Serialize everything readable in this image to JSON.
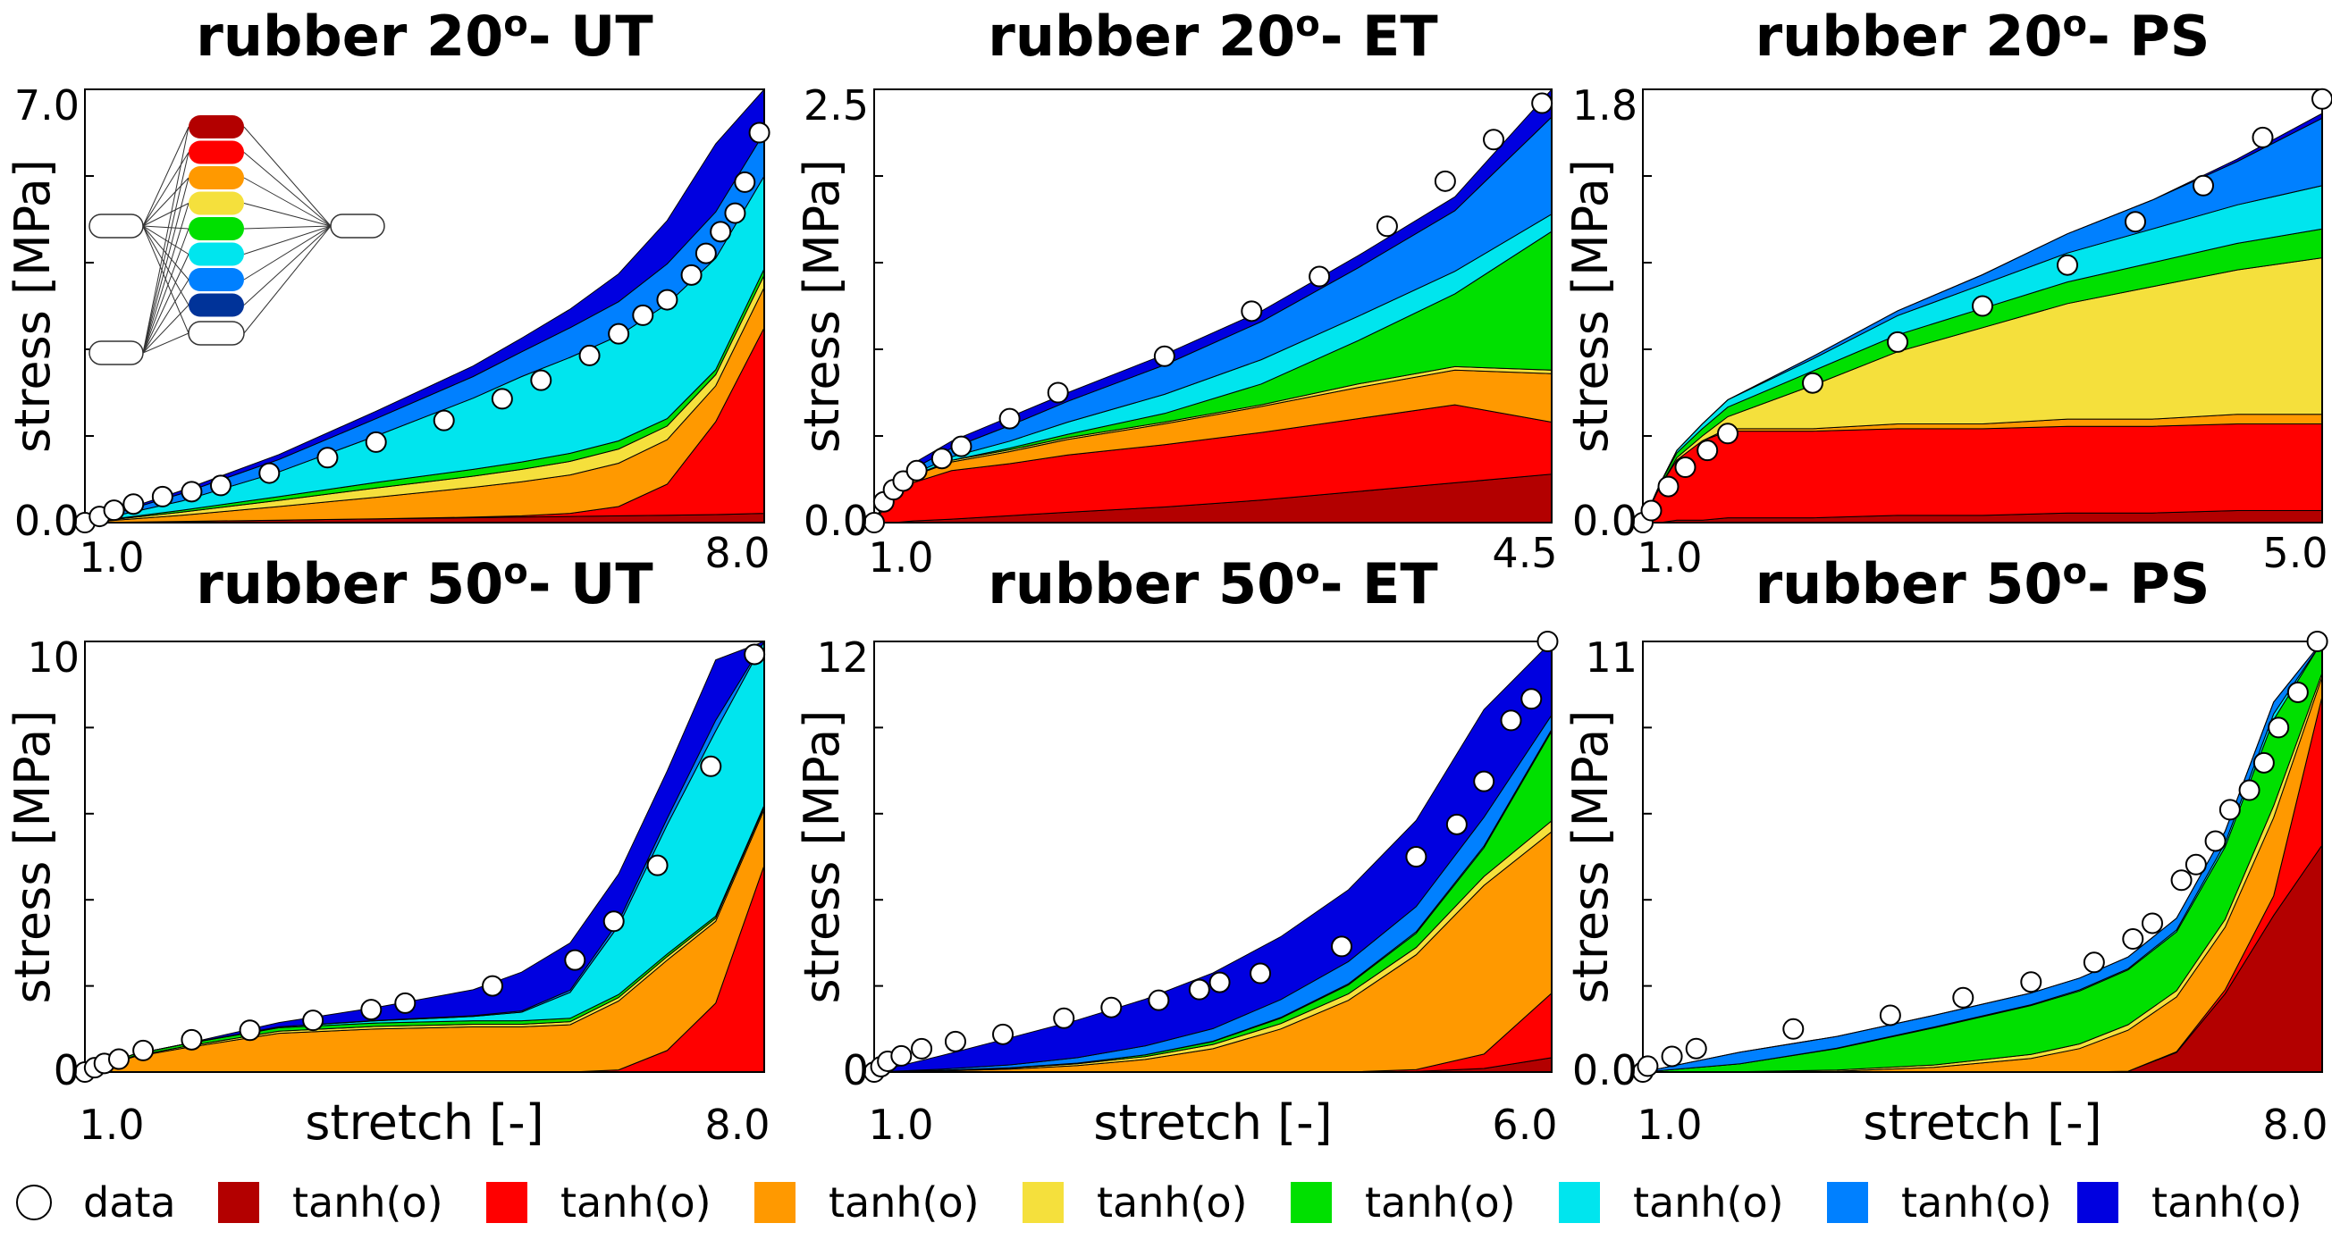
{
  "figure": {
    "legend": [
      {
        "label": "data",
        "kind": "circle"
      },
      {
        "label": "tanh(o)",
        "color": "#b30000"
      },
      {
        "label": "tanh(o)",
        "color": "#ff0000"
      },
      {
        "label": "tanh(o)",
        "color": "#ff9900"
      },
      {
        "label": "tanh(o)",
        "color": "#f5e03c"
      },
      {
        "label": "tanh(o)",
        "color": "#00e000"
      },
      {
        "label": "tanh(o)",
        "color": "#00e5ee"
      },
      {
        "label": "tanh(o)",
        "color": "#0080ff"
      },
      {
        "label": "tanh(o)",
        "color": "#0000e0"
      }
    ],
    "inset_network": {
      "node_colors": [
        "#b30000",
        "#ff0000",
        "#ff9900",
        "#f5e03c",
        "#00e000",
        "#00e5ee",
        "#0080ff",
        "#003399"
      ]
    }
  },
  "chart_data": [
    {
      "type": "area",
      "title_pre": "rubber 20",
      "title_sup": "o",
      "title_post": "- UT",
      "xlabel": "",
      "ylabel": "stress [MPa]",
      "xlim": [
        1.0,
        8.0
      ],
      "ylim": [
        0.0,
        7.0
      ],
      "xticks": [
        "1.0",
        "8.0"
      ],
      "yticks": [
        "0.0",
        "7.0"
      ],
      "series_names": [
        "tanh(o)",
        "tanh(o)",
        "tanh(o)",
        "tanh(o)",
        "tanh(o)",
        "tanh(o)",
        "tanh(o)",
        "tanh(o)"
      ],
      "x": [
        1.0,
        2.0,
        3.0,
        4.0,
        5.0,
        5.5,
        6.0,
        6.5,
        7.0,
        7.5,
        8.0
      ],
      "stacked": [
        [
          0.0,
          0.02,
          0.04,
          0.06,
          0.08,
          0.09,
          0.1,
          0.11,
          0.12,
          0.13,
          0.15
        ],
        [
          0.0,
          0.0,
          0.0,
          0.0,
          0.01,
          0.02,
          0.05,
          0.15,
          0.5,
          1.5,
          3.0
        ],
        [
          0.0,
          0.1,
          0.22,
          0.35,
          0.48,
          0.55,
          0.62,
          0.7,
          0.72,
          0.58,
          0.65
        ],
        [
          0.0,
          0.05,
          0.1,
          0.15,
          0.18,
          0.2,
          0.22,
          0.23,
          0.22,
          0.18,
          0.2
        ],
        [
          0.0,
          0.03,
          0.06,
          0.09,
          0.11,
          0.12,
          0.13,
          0.13,
          0.12,
          0.08,
          0.1
        ],
        [
          0.0,
          0.15,
          0.4,
          0.75,
          1.15,
          1.38,
          1.55,
          1.7,
          1.85,
          1.8,
          1.5
        ],
        [
          0.0,
          0.12,
          0.2,
          0.28,
          0.35,
          0.4,
          0.48,
          0.55,
          0.65,
          0.75,
          0.7
        ],
        [
          0.0,
          0.05,
          0.08,
          0.12,
          0.17,
          0.22,
          0.3,
          0.45,
          0.7,
          1.1,
          1.7
        ]
      ],
      "data_points": {
        "x": [
          1.0,
          1.15,
          1.3,
          1.5,
          1.8,
          2.1,
          2.4,
          2.9,
          3.5,
          4.0,
          4.7,
          5.3,
          5.7,
          6.2,
          6.5,
          6.75,
          7.0,
          7.25,
          7.4,
          7.55,
          7.7,
          7.8,
          7.95
        ],
        "y": [
          0.0,
          0.1,
          0.2,
          0.3,
          0.42,
          0.5,
          0.6,
          0.8,
          1.05,
          1.3,
          1.65,
          2.0,
          2.3,
          2.7,
          3.05,
          3.35,
          3.6,
          4.0,
          4.35,
          4.7,
          5.0,
          5.5,
          6.3
        ]
      }
    },
    {
      "type": "area",
      "title_pre": "rubber 20",
      "title_sup": "o",
      "title_post": "- ET",
      "xlabel": "",
      "ylabel": "stress [MPa]",
      "xlim": [
        1.0,
        4.5
      ],
      "ylim": [
        0.0,
        2.5
      ],
      "xticks": [
        "1.0",
        "4.5"
      ],
      "yticks": [
        "0.0",
        "2.5"
      ],
      "series_names": [
        "tanh(o)",
        "tanh(o)",
        "tanh(o)",
        "tanh(o)",
        "tanh(o)",
        "tanh(o)",
        "tanh(o)",
        "tanh(o)"
      ],
      "x": [
        1.0,
        1.05,
        1.1,
        1.2,
        1.4,
        1.7,
        2.0,
        2.5,
        3.0,
        3.5,
        4.0,
        4.5
      ],
      "stacked": [
        [
          0.0,
          0.0,
          0.0,
          0.01,
          0.02,
          0.04,
          0.06,
          0.09,
          0.13,
          0.18,
          0.23,
          0.28
        ],
        [
          0.0,
          0.08,
          0.15,
          0.22,
          0.28,
          0.3,
          0.33,
          0.36,
          0.39,
          0.42,
          0.45,
          0.3
        ],
        [
          0.0,
          0.02,
          0.03,
          0.04,
          0.05,
          0.07,
          0.09,
          0.12,
          0.15,
          0.18,
          0.2,
          0.28
        ],
        [
          0.0,
          0.0,
          0.0,
          0.0,
          0.01,
          0.01,
          0.01,
          0.01,
          0.01,
          0.02,
          0.02,
          0.02
        ],
        [
          0.0,
          0.0,
          0.0,
          0.0,
          0.0,
          0.01,
          0.02,
          0.05,
          0.12,
          0.25,
          0.42,
          0.8
        ],
        [
          0.0,
          0.0,
          0.0,
          0.01,
          0.02,
          0.04,
          0.07,
          0.11,
          0.14,
          0.14,
          0.13,
          0.1
        ],
        [
          0.0,
          0.01,
          0.02,
          0.03,
          0.05,
          0.09,
          0.12,
          0.17,
          0.22,
          0.28,
          0.35,
          0.56
        ],
        [
          0.0,
          0.01,
          0.02,
          0.03,
          0.04,
          0.05,
          0.05,
          0.06,
          0.06,
          0.07,
          0.08,
          0.16
        ]
      ],
      "data_points": {
        "x": [
          1.0,
          1.05,
          1.1,
          1.15,
          1.22,
          1.35,
          1.45,
          1.7,
          1.95,
          2.5,
          2.95,
          3.3,
          3.65,
          3.95,
          4.2,
          4.45
        ],
        "y": [
          0.0,
          0.12,
          0.19,
          0.24,
          0.3,
          0.37,
          0.44,
          0.6,
          0.75,
          0.96,
          1.22,
          1.42,
          1.71,
          1.97,
          2.21,
          2.42
        ]
      }
    },
    {
      "type": "area",
      "title_pre": "rubber 20",
      "title_sup": "o",
      "title_post": "- PS",
      "xlabel": "",
      "ylabel": "stress [MPa]",
      "xlim": [
        1.0,
        5.0
      ],
      "ylim": [
        0.0,
        1.8
      ],
      "xticks": [
        "1.0",
        "5.0"
      ],
      "yticks": [
        "0.0",
        "1.8"
      ],
      "series_names": [
        "tanh(o)",
        "tanh(o)",
        "tanh(o)",
        "tanh(o)",
        "tanh(o)",
        "tanh(o)",
        "tanh(o)",
        "tanh(o)"
      ],
      "x": [
        1.0,
        1.1,
        1.2,
        1.35,
        1.5,
        2.0,
        2.5,
        3.0,
        3.5,
        4.0,
        4.5,
        5.0
      ],
      "stacked": [
        [
          0.0,
          0.0,
          0.01,
          0.01,
          0.02,
          0.02,
          0.03,
          0.03,
          0.04,
          0.04,
          0.05,
          0.05
        ],
        [
          0.0,
          0.15,
          0.25,
          0.33,
          0.36,
          0.36,
          0.36,
          0.36,
          0.36,
          0.36,
          0.36,
          0.36
        ],
        [
          0.0,
          0.0,
          0.0,
          0.0,
          0.01,
          0.01,
          0.02,
          0.02,
          0.03,
          0.03,
          0.04,
          0.04
        ],
        [
          0.0,
          0.0,
          0.01,
          0.02,
          0.05,
          0.18,
          0.3,
          0.4,
          0.48,
          0.55,
          0.6,
          0.65
        ],
        [
          0.0,
          0.01,
          0.02,
          0.03,
          0.04,
          0.06,
          0.07,
          0.08,
          0.09,
          0.1,
          0.11,
          0.12
        ],
        [
          0.0,
          0.0,
          0.01,
          0.02,
          0.03,
          0.05,
          0.08,
          0.1,
          0.12,
          0.14,
          0.16,
          0.18
        ],
        [
          0.0,
          0.0,
          0.0,
          0.0,
          0.0,
          0.01,
          0.02,
          0.04,
          0.08,
          0.12,
          0.18,
          0.28
        ],
        [
          0.0,
          0.0,
          0.0,
          0.0,
          0.0,
          0.0,
          0.0,
          0.0,
          0.0,
          0.0,
          0.01,
          0.02
        ]
      ],
      "data_points": {
        "x": [
          1.0,
          1.05,
          1.15,
          1.25,
          1.38,
          1.5,
          2.0,
          2.5,
          3.0,
          3.5,
          3.9,
          4.3,
          4.65,
          5.0
        ],
        "y": [
          0.0,
          0.05,
          0.15,
          0.23,
          0.3,
          0.37,
          0.58,
          0.75,
          0.9,
          1.07,
          1.25,
          1.4,
          1.6,
          1.76
        ]
      }
    },
    {
      "type": "area",
      "title_pre": "rubber 50",
      "title_sup": "o",
      "title_post": "- UT",
      "xlabel": "stretch [-]",
      "ylabel": "stress [MPa]",
      "xlim": [
        1.0,
        8.0
      ],
      "ylim": [
        0,
        10
      ],
      "xticks": [
        "1.0",
        "8.0"
      ],
      "yticks": [
        "0",
        "10"
      ],
      "series_names": [
        "tanh(o)",
        "tanh(o)",
        "tanh(o)",
        "tanh(o)",
        "tanh(o)",
        "tanh(o)",
        "tanh(o)",
        "tanh(o)"
      ],
      "x": [
        1.0,
        1.5,
        2.0,
        3.0,
        4.0,
        5.0,
        5.5,
        6.0,
        6.5,
        7.0,
        7.5,
        8.0
      ],
      "stacked": [
        [
          0.0,
          0.0,
          0.0,
          0.0,
          0.0,
          0.0,
          0.0,
          0.0,
          0.0,
          0.0,
          0.0,
          0.0
        ],
        [
          0.0,
          0.0,
          0.0,
          0.0,
          0.0,
          0.0,
          0.0,
          0.0,
          0.05,
          0.5,
          1.6,
          4.8
        ],
        [
          0.0,
          0.35,
          0.55,
          0.9,
          1.0,
          1.05,
          1.05,
          1.1,
          1.6,
          2.1,
          1.9,
          1.3
        ],
        [
          0.0,
          0.02,
          0.03,
          0.05,
          0.06,
          0.06,
          0.06,
          0.07,
          0.08,
          0.08,
          0.07,
          0.06
        ],
        [
          0.0,
          0.04,
          0.06,
          0.08,
          0.08,
          0.08,
          0.08,
          0.08,
          0.07,
          0.06,
          0.05,
          0.04
        ],
        [
          0.0,
          0.0,
          0.0,
          0.02,
          0.05,
          0.1,
          0.2,
          0.6,
          1.6,
          3.0,
          4.3,
          3.8
        ],
        [
          0.0,
          0.0,
          0.0,
          0.0,
          0.01,
          0.02,
          0.03,
          0.05,
          0.1,
          0.15,
          0.25,
          0.15
        ],
        [
          0.0,
          0.0,
          0.0,
          0.1,
          0.3,
          0.6,
          0.9,
          1.1,
          1.1,
          1.1,
          1.4,
          0.3
        ]
      ],
      "data_points": {
        "x": [
          1.0,
          1.1,
          1.2,
          1.35,
          1.6,
          2.1,
          2.7,
          3.35,
          3.95,
          4.3,
          5.2,
          6.05,
          6.45,
          6.9,
          7.45,
          7.9
        ],
        "y": [
          0.0,
          0.1,
          0.2,
          0.3,
          0.5,
          0.75,
          0.97,
          1.2,
          1.45,
          1.6,
          2.0,
          2.6,
          3.5,
          4.8,
          7.1,
          9.7
        ]
      }
    },
    {
      "type": "area",
      "title_pre": "rubber 50",
      "title_sup": "o",
      "title_post": "- ET",
      "xlabel": "stretch [-]",
      "ylabel": "stress [MPa]",
      "xlim": [
        1.0,
        6.0
      ],
      "ylim": [
        0,
        12
      ],
      "xticks": [
        "1.0",
        "6.0"
      ],
      "yticks": [
        "0",
        "12"
      ],
      "series_names": [
        "tanh(o)",
        "tanh(o)",
        "tanh(o)",
        "tanh(o)",
        "tanh(o)",
        "tanh(o)",
        "tanh(o)",
        "tanh(o)"
      ],
      "x": [
        1.0,
        1.5,
        2.0,
        2.5,
        3.0,
        3.5,
        4.0,
        4.5,
        5.0,
        5.5,
        6.0
      ],
      "stacked": [
        [
          0.0,
          0.0,
          0.0,
          0.0,
          0.0,
          0.0,
          0.0,
          0.0,
          0.02,
          0.1,
          0.4
        ],
        [
          0.0,
          0.0,
          0.0,
          0.0,
          0.0,
          0.0,
          0.0,
          0.0,
          0.05,
          0.4,
          1.8
        ],
        [
          0.0,
          0.03,
          0.08,
          0.18,
          0.35,
          0.65,
          1.2,
          2.0,
          3.2,
          4.7,
          4.5
        ],
        [
          0.0,
          0.02,
          0.03,
          0.05,
          0.08,
          0.12,
          0.15,
          0.18,
          0.2,
          0.25,
          0.3
        ],
        [
          0.0,
          0.0,
          0.01,
          0.02,
          0.05,
          0.08,
          0.15,
          0.25,
          0.4,
          0.8,
          2.5
        ],
        [
          0.0,
          0.0,
          0.0,
          0.0,
          0.0,
          0.01,
          0.02,
          0.03,
          0.04,
          0.05,
          0.05
        ],
        [
          0.0,
          0.03,
          0.08,
          0.15,
          0.25,
          0.35,
          0.5,
          0.62,
          0.7,
          0.8,
          0.4
        ],
        [
          0.0,
          0.38,
          0.75,
          1.05,
          1.3,
          1.55,
          1.75,
          2.0,
          2.4,
          3.0,
          2.55
        ]
      ],
      "data_points": {
        "x": [
          1.0,
          1.05,
          1.1,
          1.2,
          1.35,
          1.6,
          1.95,
          2.4,
          2.75,
          3.1,
          3.4,
          3.55,
          3.85,
          4.45,
          5.0,
          5.3,
          5.5,
          5.7,
          5.85,
          5.97
        ],
        "y": [
          0.0,
          0.15,
          0.3,
          0.45,
          0.65,
          0.85,
          1.05,
          1.5,
          1.8,
          2.0,
          2.3,
          2.5,
          2.75,
          3.5,
          6.0,
          6.9,
          8.1,
          9.8,
          10.4,
          12.0
        ]
      }
    },
    {
      "type": "area",
      "title_pre": "rubber 50",
      "title_sup": "o",
      "title_post": "- PS",
      "xlabel": "stretch [-]",
      "ylabel": "stress [MPa]",
      "xlim": [
        1.0,
        8.0
      ],
      "ylim": [
        0.0,
        11
      ],
      "xticks": [
        "1.0",
        "8.0"
      ],
      "yticks": [
        "0.0",
        "11"
      ],
      "series_names": [
        "tanh(o)",
        "tanh(o)",
        "tanh(o)",
        "tanh(o)",
        "tanh(o)",
        "tanh(o)",
        "tanh(o)",
        "tanh(o)"
      ],
      "x": [
        1.0,
        2.0,
        3.0,
        4.0,
        5.0,
        5.5,
        6.0,
        6.5,
        7.0,
        7.5,
        8.0
      ],
      "stacked": [
        [
          0.0,
          0.0,
          0.0,
          0.0,
          0.0,
          0.0,
          0.02,
          0.5,
          2.0,
          4.0,
          5.8
        ],
        [
          0.0,
          0.0,
          0.0,
          0.0,
          0.0,
          0.0,
          0.0,
          0.02,
          0.1,
          0.5,
          3.8
        ],
        [
          0.0,
          0.0,
          0.02,
          0.12,
          0.35,
          0.6,
          1.05,
          1.4,
          1.6,
          2.0,
          0.5
        ],
        [
          0.0,
          0.01,
          0.03,
          0.06,
          0.1,
          0.12,
          0.14,
          0.16,
          0.2,
          0.3,
          0.1
        ],
        [
          0.0,
          0.2,
          0.55,
          0.95,
          1.25,
          1.35,
          1.4,
          1.5,
          1.85,
          2.2,
          0.8
        ],
        [
          0.0,
          0.0,
          0.01,
          0.02,
          0.02,
          0.03,
          0.03,
          0.05,
          0.1,
          0.15,
          0.1
        ],
        [
          0.0,
          0.3,
          0.3,
          0.3,
          0.3,
          0.3,
          0.3,
          0.3,
          0.3,
          0.3,
          0.3
        ],
        [
          0.0,
          0.0,
          0.0,
          0.0,
          0.0,
          0.0,
          0.0,
          0.0,
          0.0,
          0.0,
          0.0
        ]
      ],
      "data_points": {
        "x": [
          1.0,
          1.05,
          1.3,
          1.55,
          2.55,
          3.55,
          4.3,
          5.0,
          5.65,
          6.05,
          6.25,
          6.55,
          6.7,
          6.9,
          7.05,
          7.25,
          7.4,
          7.55,
          7.75,
          7.95
        ],
        "y": [
          0.0,
          0.15,
          0.4,
          0.6,
          1.1,
          1.45,
          1.9,
          2.3,
          2.8,
          3.4,
          3.8,
          4.9,
          5.3,
          5.9,
          6.7,
          7.2,
          7.9,
          8.8,
          9.7,
          11.0
        ]
      }
    }
  ]
}
